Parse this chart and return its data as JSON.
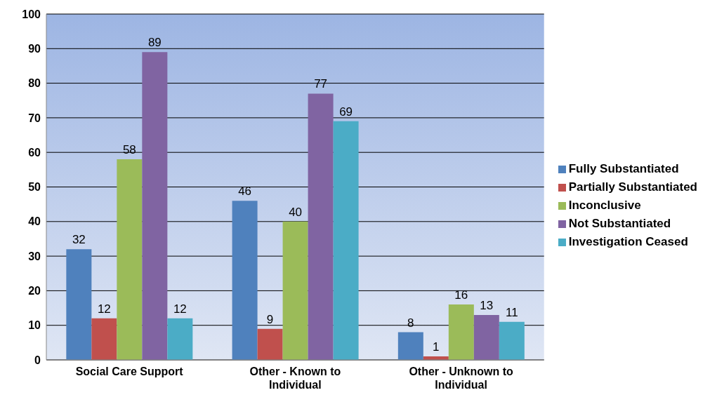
{
  "chart_data": {
    "type": "bar",
    "categories": [
      "Social Care Support",
      "Other - Known to Individual",
      "Other - Unknown to Individual"
    ],
    "series": [
      {
        "name": "Fully Substantiated",
        "color": "#4f81bd",
        "values": [
          32,
          46,
          8
        ]
      },
      {
        "name": "Partially Substantiated",
        "color": "#c0504d",
        "values": [
          12,
          9,
          1
        ]
      },
      {
        "name": "Inconclusive",
        "color": "#9bbb59",
        "values": [
          58,
          40,
          16
        ]
      },
      {
        "name": "Not Substantiated",
        "color": "#8064a2",
        "values": [
          89,
          77,
          13
        ]
      },
      {
        "name": "Investigation Ceased",
        "color": "#4bacc6",
        "values": [
          12,
          69,
          11
        ]
      }
    ],
    "ylim": [
      0,
      100
    ],
    "yticks": [
      0,
      10,
      20,
      30,
      40,
      50,
      60,
      70,
      80,
      90,
      100
    ],
    "grid": "y",
    "legend": "right",
    "data_labels": true
  }
}
